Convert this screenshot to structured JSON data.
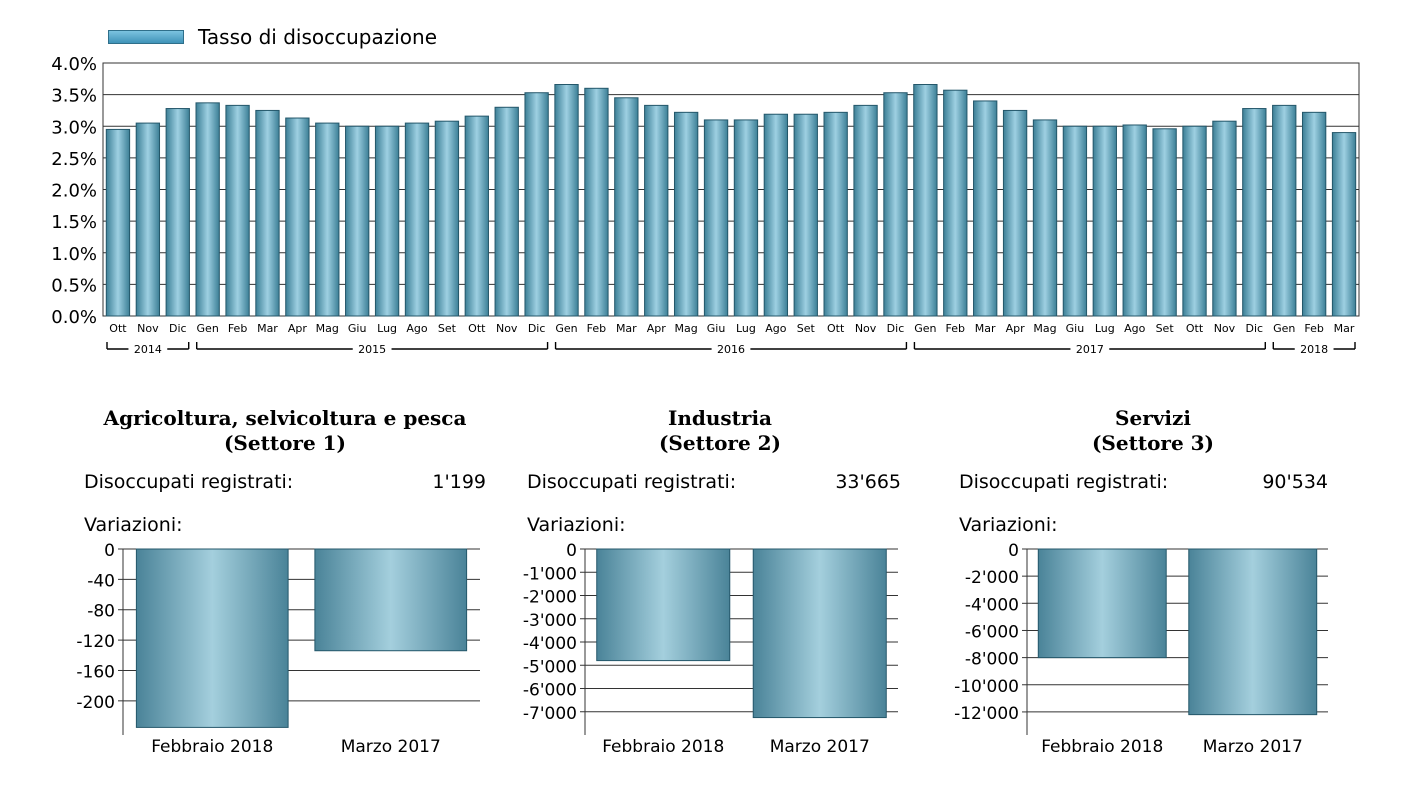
{
  "legend": {
    "label": "Tasso di disoccupazione"
  },
  "colors": {
    "bar_dark": "#3c7f96",
    "bar_light": "#9ed0e2",
    "bar_border": "#24576a"
  },
  "chart_data": [
    {
      "type": "bar",
      "series": [
        {
          "name": "Tasso di disoccupazione",
          "values": [
            2.95,
            3.05,
            3.28,
            3.37,
            3.33,
            3.25,
            3.13,
            3.05,
            3.0,
            3.0,
            3.05,
            3.08,
            3.16,
            3.3,
            3.53,
            3.66,
            3.6,
            3.45,
            3.33,
            3.22,
            3.1,
            3.1,
            3.19,
            3.19,
            3.22,
            3.33,
            3.53,
            3.66,
            3.57,
            3.4,
            3.25,
            3.1,
            3.0,
            3.0,
            3.02,
            2.96,
            3.0,
            3.08,
            3.28,
            3.33,
            3.22,
            2.9
          ]
        }
      ],
      "categories": [
        "Ott",
        "Nov",
        "Dic",
        "Gen",
        "Feb",
        "Mar",
        "Apr",
        "Mag",
        "Giu",
        "Lug",
        "Ago",
        "Set",
        "Ott",
        "Nov",
        "Dic",
        "Gen",
        "Feb",
        "Mar",
        "Apr",
        "Mag",
        "Giu",
        "Lug",
        "Ago",
        "Set",
        "Ott",
        "Nov",
        "Dic",
        "Gen",
        "Feb",
        "Mar",
        "Apr",
        "Mag",
        "Giu",
        "Lug",
        "Ago",
        "Set",
        "Ott",
        "Nov",
        "Dic",
        "Gen",
        "Feb",
        "Mar"
      ],
      "year_groups": [
        {
          "label": "2014",
          "start": 0,
          "end": 2
        },
        {
          "label": "2015",
          "start": 3,
          "end": 14
        },
        {
          "label": "2016",
          "start": 15,
          "end": 26
        },
        {
          "label": "2017",
          "start": 27,
          "end": 38
        },
        {
          "label": "2018",
          "start": 39,
          "end": 41
        }
      ],
      "yticks": [
        "0.0%",
        "0.5%",
        "1.0%",
        "1.5%",
        "2.0%",
        "2.5%",
        "3.0%",
        "3.5%",
        "4.0%"
      ],
      "ylim": [
        0,
        4
      ],
      "grid": true,
      "legend": "top-left"
    },
    {
      "type": "bar",
      "title": "Agricoltura, selvicoltura  e pesca",
      "subtitle": "(Settore 1)",
      "categories": [
        "Febbraio 2018",
        "Marzo 2017"
      ],
      "values": [
        -235,
        -134
      ],
      "yticks": [
        "0",
        "-40",
        "-80",
        "-120",
        "-160",
        "-200"
      ],
      "ylim": [
        -245,
        0
      ]
    },
    {
      "type": "bar",
      "title": "Industria",
      "subtitle": "(Settore 2)",
      "categories": [
        "Febbraio 2018",
        "Marzo 2017"
      ],
      "values": [
        -4800,
        -7250
      ],
      "yticks": [
        "0",
        "-1'000",
        "-2'000",
        "-3'000",
        "-4'000",
        "-5'000",
        "-6'000",
        "-7'000"
      ],
      "ylim": [
        -8000,
        0
      ]
    },
    {
      "type": "bar",
      "title": "Servizi",
      "subtitle": "(Settore 3)",
      "categories": [
        "Febbraio 2018",
        "Marzo 2017"
      ],
      "values": [
        -8000,
        -12200
      ],
      "yticks": [
        "0",
        "-2'000",
        "-4'000",
        "-6'000",
        "-8'000",
        "-10'000",
        "-12'000"
      ],
      "ylim": [
        -13700,
        0
      ]
    }
  ],
  "panels": [
    {
      "title": "Agricoltura, selvicoltura  e pesca",
      "subtitle": "(Settore 1)",
      "registered_label": "Disoccupati registrati:",
      "registered_value": "1'199",
      "variations_label": "Variazioni:"
    },
    {
      "title": "Industria",
      "subtitle": "(Settore 2)",
      "registered_label": "Disoccupati registrati:",
      "registered_value": "33'665",
      "variations_label": "Variazioni:"
    },
    {
      "title": "Servizi",
      "subtitle": "(Settore 3)",
      "registered_label": "Disoccupati registrati:",
      "registered_value": "90'534",
      "variations_label": "Variazioni:"
    }
  ]
}
